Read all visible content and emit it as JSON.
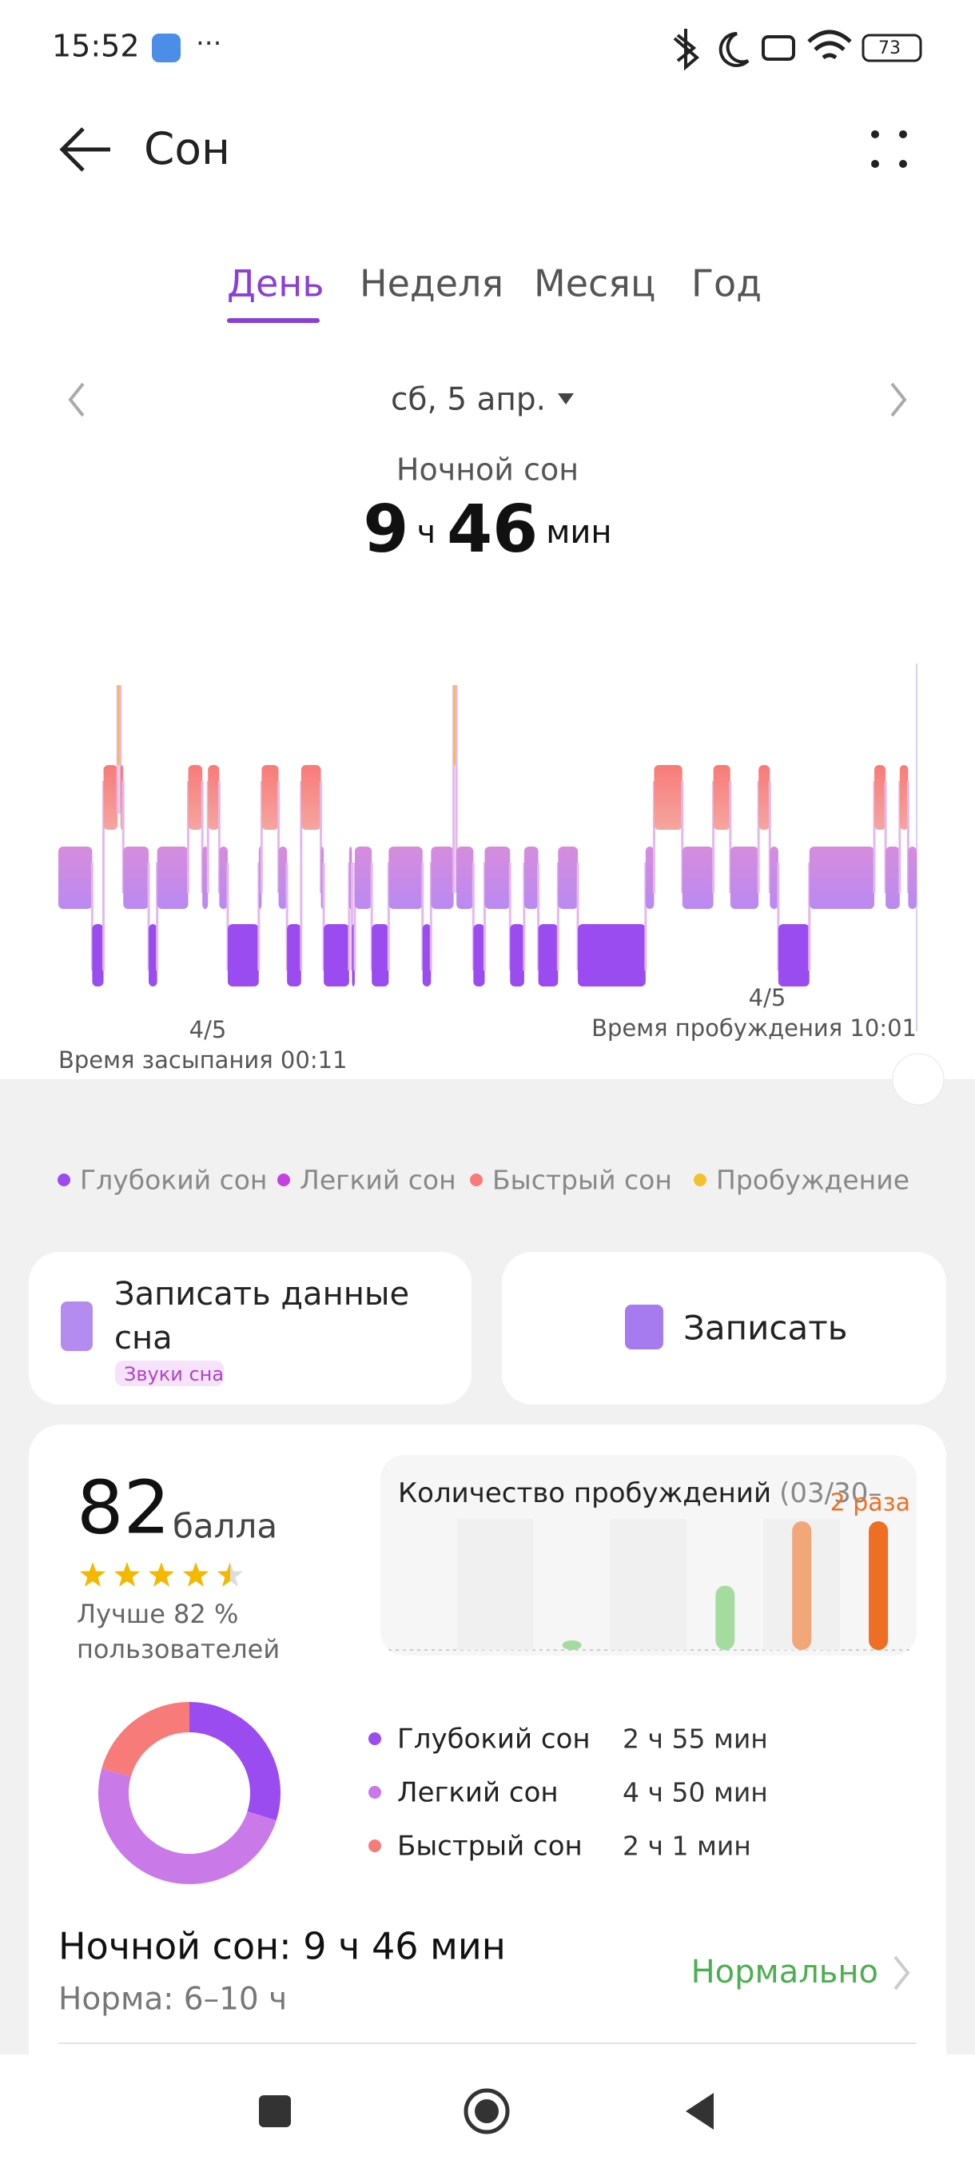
{
  "status_bar": {
    "time": "15:52",
    "battery": "73"
  },
  "header": {
    "title": "Сон"
  },
  "tabs": [
    "День",
    "Неделя",
    "Месяц",
    "Год"
  ],
  "active_tab": 0,
  "date": "сб, 5 апр.",
  "summary": {
    "label": "Ночной сон",
    "hours": 9,
    "hours_unit": "ч",
    "minutes": 46,
    "minutes_unit": "мин"
  },
  "hypnogram": {
    "segments": [
      {
        "stage": 1,
        "minutes": 24
      },
      {
        "stage": 0,
        "minutes": 8
      },
      {
        "stage": 2,
        "minutes": 10
      },
      {
        "stage": 3,
        "minutes": 2
      },
      {
        "stage": 2,
        "minutes": 2
      },
      {
        "stage": 1,
        "minutes": 18
      },
      {
        "stage": 0,
        "minutes": 6
      },
      {
        "stage": 1,
        "minutes": 22
      },
      {
        "stage": 2,
        "minutes": 10
      },
      {
        "stage": 1,
        "minutes": 4
      },
      {
        "stage": 2,
        "minutes": 8
      },
      {
        "stage": 1,
        "minutes": 6
      },
      {
        "stage": 0,
        "minutes": 22
      },
      {
        "stage": 1,
        "minutes": 2
      },
      {
        "stage": 2,
        "minutes": 12
      },
      {
        "stage": 1,
        "minutes": 6
      },
      {
        "stage": 0,
        "minutes": 10
      },
      {
        "stage": 2,
        "minutes": 14
      },
      {
        "stage": 1,
        "minutes": 2
      },
      {
        "stage": 0,
        "minutes": 18
      },
      {
        "stage": 1,
        "minutes": 2
      },
      {
        "stage": 0,
        "minutes": 2
      },
      {
        "stage": 1,
        "minutes": 12
      },
      {
        "stage": 0,
        "minutes": 12
      },
      {
        "stage": 1,
        "minutes": 24
      },
      {
        "stage": 0,
        "minutes": 6
      },
      {
        "stage": 1,
        "minutes": 16
      },
      {
        "stage": 3,
        "minutes": 2
      },
      {
        "stage": 1,
        "minutes": 12
      },
      {
        "stage": 0,
        "minutes": 8
      },
      {
        "stage": 1,
        "minutes": 18
      },
      {
        "stage": 0,
        "minutes": 10
      },
      {
        "stage": 1,
        "minutes": 10
      },
      {
        "stage": 0,
        "minutes": 14
      },
      {
        "stage": 1,
        "minutes": 14
      },
      {
        "stage": 0,
        "minutes": 48
      },
      {
        "stage": 1,
        "minutes": 6
      },
      {
        "stage": 2,
        "minutes": 20
      },
      {
        "stage": 1,
        "minutes": 22
      },
      {
        "stage": 2,
        "minutes": 12
      },
      {
        "stage": 1,
        "minutes": 20
      },
      {
        "stage": 2,
        "minutes": 8
      },
      {
        "stage": 1,
        "minutes": 6
      },
      {
        "stage": 0,
        "minutes": 22
      },
      {
        "stage": 1,
        "minutes": 46
      },
      {
        "stage": 2,
        "minutes": 8
      },
      {
        "stage": 1,
        "minutes": 10
      },
      {
        "stage": 2,
        "minutes": 6
      },
      {
        "stage": 1,
        "minutes": 6
      }
    ],
    "start": {
      "date": "4/5",
      "label": "Время засыпания 00:11"
    },
    "end": {
      "date": "4/5",
      "label": "Время пробуждения 10:01"
    }
  },
  "legend": [
    {
      "name": "Глубокий сон",
      "color": "#9b4cf0"
    },
    {
      "name": "Легкий сон",
      "color": "#c640e0"
    },
    {
      "name": "Быстрый сон",
      "color": "#f77b78"
    },
    {
      "name": "Пробуждение",
      "color": "#f5c030"
    }
  ],
  "actions": [
    {
      "title_lines": [
        "Записать данные",
        "сна"
      ],
      "tag": "Звуки сна"
    },
    {
      "title": "Записать"
    }
  ],
  "score": {
    "value": 82,
    "unit": "балла",
    "comparison": [
      "Лучше 82 %",
      "пользователей"
    ]
  },
  "awakenings": {
    "type": "bar",
    "title": "Количество пробуждений",
    "subtitle": "(03/30–",
    "values": [
      null,
      null,
      0,
      null,
      1,
      2,
      2
    ],
    "colors": [
      null,
      null,
      "#a6dba0",
      null,
      "#a6dba0",
      "#f2a77a",
      "#ee6f24"
    ],
    "value_labels": [
      null,
      null,
      null,
      null,
      null,
      null,
      "2 раза"
    ],
    "value_label_color": "#ee6f24",
    "ylim": [
      0,
      2
    ]
  },
  "stages": {
    "type": "pie",
    "categories": [
      "Глубокий сон",
      "Легкий сон",
      "Быстрый сон"
    ],
    "values": [
      175,
      290,
      121
    ],
    "value_labels": [
      "2 ч 55 мин",
      "4 ч 50 мин",
      "2 ч 1 мин"
    ],
    "colors": [
      "#9b4cf0",
      "#c97ae8",
      "#f77b78"
    ]
  },
  "night_sleep": {
    "label": "Ночной сон: 9 ч 46 мин",
    "norm": "Норма: 6–10 ч",
    "status": "Нормально"
  }
}
